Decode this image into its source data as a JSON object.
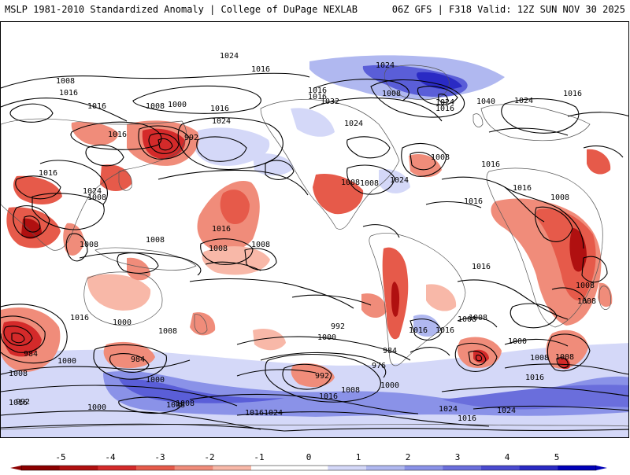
{
  "header": {
    "left_title": "MSLP 1981-2010 Standardized Anomaly | College of DuPage NEXLAB",
    "right_title": "06Z GFS | F318 Valid: 12Z SUN NOV 30 2025"
  },
  "colorbar": {
    "ticks": [
      "-5",
      "-4",
      "-3",
      "-2",
      "-1",
      "0",
      "1",
      "2",
      "3",
      "4",
      "5"
    ],
    "colors": [
      "#8b0000",
      "#b01010",
      "#d42a2a",
      "#e65a4a",
      "#f08c7a",
      "#f8b8a8",
      "#ffffff",
      "#ffffff",
      "#d4d8f8",
      "#b0b8f0",
      "#8a92e8",
      "#6a6edc",
      "#4a4ad0",
      "#2a2ac4",
      "#0000b8"
    ]
  },
  "anomalies": [
    {
      "type": "neg",
      "level": 2,
      "label": "north-pacific-low"
    },
    {
      "type": "neg",
      "level": 2,
      "label": "south-pacific-low"
    },
    {
      "type": "neg",
      "level": 2,
      "label": "central-pacific"
    },
    {
      "type": "neg",
      "level": 2,
      "label": "andes"
    },
    {
      "type": "neg",
      "level": 2,
      "label": "east-africa"
    },
    {
      "type": "neg",
      "level": 1,
      "label": "indian-ocean"
    },
    {
      "type": "pos",
      "level": 2,
      "label": "greenland-high"
    },
    {
      "type": "pos",
      "level": 3,
      "label": "southern-ocean-band"
    }
  ],
  "contour_labels": [
    {
      "text": "1024"
    },
    {
      "text": "1016"
    },
    {
      "text": "1008"
    },
    {
      "text": "1016"
    },
    {
      "text": "1016"
    },
    {
      "text": "1008"
    },
    {
      "text": "1000"
    },
    {
      "text": "992"
    },
    {
      "text": "1016"
    },
    {
      "text": "1024"
    },
    {
      "text": "1016"
    },
    {
      "text": "1024"
    },
    {
      "text": "1016"
    },
    {
      "text": "1024"
    },
    {
      "text": "1016"
    },
    {
      "text": "1016"
    },
    {
      "text": "1008"
    },
    {
      "text": "1032"
    },
    {
      "text": "1024"
    },
    {
      "text": "1024"
    },
    {
      "text": "1016"
    },
    {
      "text": "1040"
    },
    {
      "text": "1024"
    },
    {
      "text": "1016"
    },
    {
      "text": "1008"
    },
    {
      "text": "1016"
    },
    {
      "text": "1016"
    },
    {
      "text": "1008"
    },
    {
      "text": "1008"
    },
    {
      "text": "1008"
    },
    {
      "text": "1024"
    },
    {
      "text": "1016"
    },
    {
      "text": "1008"
    },
    {
      "text": "1008"
    },
    {
      "text": "1016"
    },
    {
      "text": "1008"
    },
    {
      "text": "1008"
    },
    {
      "text": "1008"
    },
    {
      "text": "1016"
    },
    {
      "text": "1008"
    },
    {
      "text": "1016"
    },
    {
      "text": "1000"
    },
    {
      "text": "1008"
    },
    {
      "text": "984"
    },
    {
      "text": "984"
    },
    {
      "text": "1000"
    },
    {
      "text": "1008"
    },
    {
      "text": "992"
    },
    {
      "text": "1000"
    },
    {
      "text": "984"
    },
    {
      "text": "976"
    },
    {
      "text": "992"
    },
    {
      "text": "1000"
    },
    {
      "text": "1008"
    },
    {
      "text": "1016"
    },
    {
      "text": "1024"
    },
    {
      "text": "1016"
    },
    {
      "text": "1008"
    },
    {
      "text": "1000"
    },
    {
      "text": "992"
    },
    {
      "text": "1000"
    },
    {
      "text": "1008"
    },
    {
      "text": "1016"
    },
    {
      "text": "1024"
    },
    {
      "text": "1016"
    },
    {
      "text": "1024"
    },
    {
      "text": "1016"
    },
    {
      "text": "1008"
    },
    {
      "text": "1008"
    },
    {
      "text": "1016"
    },
    {
      "text": "1016"
    },
    {
      "text": "1000"
    },
    {
      "text": "1008"
    },
    {
      "text": "1008"
    },
    {
      "text": "1008"
    }
  ]
}
